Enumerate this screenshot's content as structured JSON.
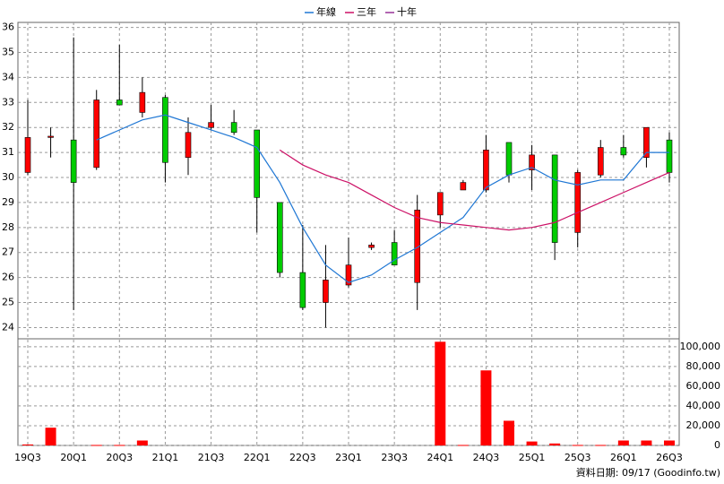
{
  "chart_data": [
    {
      "type": "candlestick",
      "up_color": "#ff0000",
      "down_color": "#00cc00",
      "wick_color": "#000000",
      "ylim": [
        23.55,
        36.2
      ],
      "yticks": [
        24,
        25,
        26,
        27,
        28,
        29,
        30,
        31,
        32,
        33,
        34,
        35,
        36
      ],
      "grid": true,
      "open": [
        30.2,
        31.6,
        31.5,
        30.4,
        33.1,
        32.6,
        33.2,
        30.8,
        32.0,
        32.2,
        31.9,
        29.0,
        26.2,
        25.0,
        25.7,
        27.2,
        27.4,
        25.8,
        28.5,
        29.5,
        29.5,
        31.4,
        30.3,
        30.9,
        27.8,
        30.1,
        31.2,
        30.8,
        31.5
      ],
      "high": [
        33.1,
        32.0,
        35.6,
        33.5,
        35.3,
        34.0,
        33.3,
        32.4,
        32.9,
        32.7,
        31.9,
        29.0,
        28.1,
        27.3,
        27.6,
        27.4,
        27.9,
        29.3,
        29.4,
        29.9,
        31.7,
        31.4,
        31.3,
        30.9,
        30.3,
        31.5,
        31.7,
        32.0,
        31.8
      ],
      "low": [
        30.1,
        30.8,
        24.7,
        30.3,
        32.9,
        32.4,
        29.8,
        30.1,
        31.9,
        31.7,
        27.8,
        26.0,
        24.7,
        24.0,
        25.6,
        27.1,
        26.5,
        24.7,
        28.0,
        29.5,
        29.4,
        29.8,
        29.5,
        26.7,
        27.2,
        30.0,
        30.8,
        30.4,
        29.8
      ],
      "close": [
        31.6,
        31.65,
        29.8,
        33.1,
        32.9,
        33.4,
        30.6,
        31.8,
        32.2,
        31.8,
        29.2,
        26.2,
        24.8,
        25.9,
        26.5,
        27.3,
        26.5,
        28.7,
        29.4,
        29.8,
        31.1,
        30.1,
        30.9,
        27.4,
        30.2,
        31.2,
        30.9,
        32.0,
        30.2
      ],
      "series": [
        {
          "name": "年線",
          "color": "#1f77d4",
          "values": [
            null,
            null,
            null,
            31.5,
            31.9,
            32.3,
            32.5,
            32.2,
            31.9,
            31.6,
            31.2,
            29.8,
            28.0,
            26.5,
            25.8,
            26.1,
            26.7,
            27.2,
            27.8,
            28.4,
            29.6,
            30.1,
            30.4,
            29.9,
            29.7,
            29.9,
            29.9,
            31.0,
            31.0
          ]
        },
        {
          "name": "三年",
          "color": "#cc1166",
          "values": [
            null,
            null,
            null,
            null,
            null,
            null,
            null,
            null,
            null,
            null,
            null,
            31.1,
            30.5,
            30.1,
            29.8,
            29.3,
            28.8,
            28.4,
            28.2,
            28.1,
            28.0,
            27.9,
            28.0,
            28.2,
            28.6,
            29.0,
            29.4,
            29.8,
            30.2
          ]
        },
        {
          "name": "十年",
          "color": "#993399",
          "values": [
            null,
            null,
            null,
            null,
            null,
            null,
            null,
            null,
            null,
            null,
            null,
            null,
            null,
            null,
            null,
            null,
            null,
            null,
            null,
            null,
            null,
            null,
            null,
            null,
            null,
            null,
            null,
            null,
            null
          ]
        }
      ]
    },
    {
      "type": "bar",
      "color": "#ff0000",
      "categories": [
        "19Q3",
        null,
        "20Q1",
        null,
        "20Q3",
        null,
        "21Q1",
        null,
        "21Q3",
        null,
        "22Q1",
        null,
        "22Q3",
        null,
        "23Q1",
        null,
        "23Q3",
        null,
        "24Q1",
        null,
        "24Q3",
        null,
        "25Q1",
        null,
        "25Q3",
        null,
        "26Q1",
        null,
        "26Q3"
      ],
      "values": [
        1000,
        18000,
        0,
        500,
        500,
        5000,
        0,
        0,
        0,
        0,
        0,
        0,
        0,
        0,
        0,
        0,
        0,
        0,
        105000,
        500,
        76000,
        25000,
        4000,
        2000,
        500,
        500,
        5000,
        5000,
        5000
      ],
      "ylim": [
        0,
        108000
      ],
      "yticks": [
        0,
        {
          "value": 20000,
          "label": "20,000"
        },
        {
          "value": 40000,
          "label": "40,000"
        },
        {
          "value": 60000,
          "label": "60,000"
        },
        {
          "value": 80000,
          "label": "80,000"
        },
        {
          "value": 100000,
          "label": "100,000"
        }
      ],
      "grid": true,
      "annotation": "資料日期: 09/17 (Goodinfo.tw)"
    }
  ]
}
